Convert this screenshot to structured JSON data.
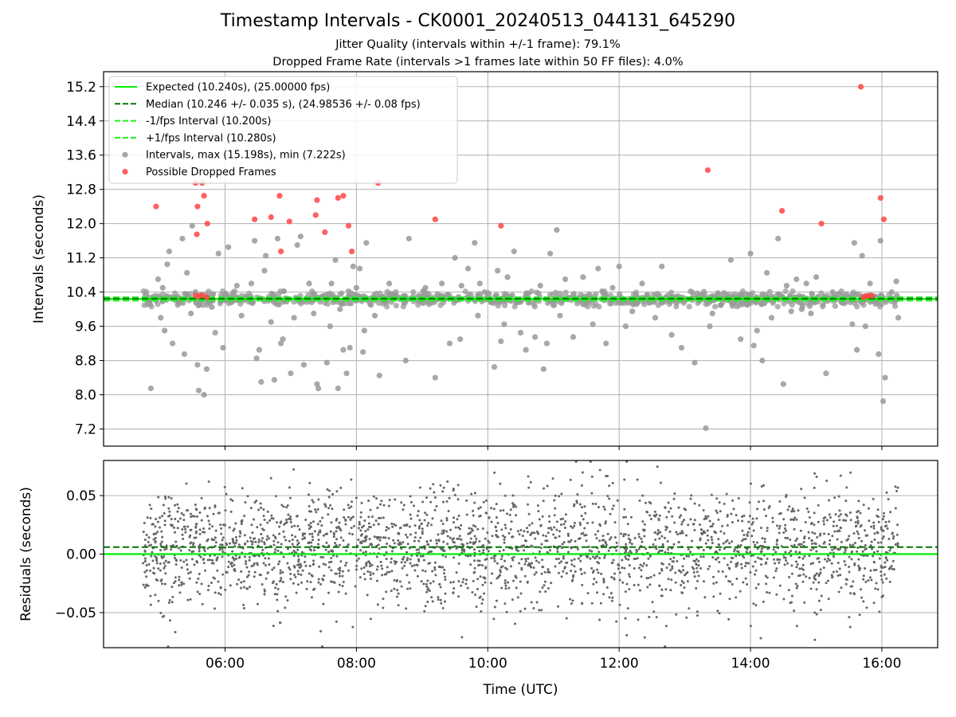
{
  "title": "Timestamp Intervals - CK0001_20240513_044131_645290",
  "subtitle_1": "Jitter Quality (intervals within +/-1 frame): 79.1%",
  "subtitle_2": "Dropped Frame Rate (intervals >1 frames late within 50 FF files): 4.0%",
  "colors": {
    "expected": "#00ee00",
    "median": "#007700",
    "fps_interval": "#22ee22",
    "intervals": "#999999",
    "dropped": "#ff4444",
    "residuals": "#666666",
    "grid": "#b0b0b0"
  },
  "chart_data": [
    {
      "type": "scatter",
      "panel": "top",
      "ylabel": "Intervals (seconds)",
      "xlabel": "",
      "x_unit": "hours UTC",
      "xlim": [
        4.15,
        16.85
      ],
      "ylim": [
        6.8,
        15.55
      ],
      "x_ticks": [
        "06:00",
        "08:00",
        "10:00",
        "12:00",
        "14:00",
        "16:00"
      ],
      "x_tick_values": [
        6,
        8,
        10,
        12,
        14,
        16
      ],
      "y_ticks": [
        "7.2",
        "8.0",
        "8.8",
        "9.6",
        "10.4",
        "11.2",
        "12.0",
        "12.8",
        "13.6",
        "14.4",
        "15.2"
      ],
      "y_tick_values": [
        7.2,
        8.0,
        8.8,
        9.6,
        10.4,
        11.2,
        12.0,
        12.8,
        13.6,
        14.4,
        15.2
      ],
      "grid": true,
      "legend_position": "top-left",
      "legend": [
        {
          "label": "Expected (10.240s), (25.00000 fps)",
          "style": "solid",
          "color_key": "expected"
        },
        {
          "label": "Median (10.246 +/- 0.035 s), (24.98536 +/- 0.08 fps)",
          "style": "dashed",
          "color_key": "median"
        },
        {
          "label": "-1/fps Interval (10.200s)",
          "style": "dashed",
          "color_key": "fps_interval"
        },
        {
          "label": "+1/fps Interval (10.280s)",
          "style": "dashed",
          "color_key": "fps_interval"
        },
        {
          "label": "Intervals, max (15.198s), min (7.222s)",
          "style": "marker",
          "color_key": "intervals"
        },
        {
          "label": "Possible Dropped Frames",
          "style": "marker",
          "color_key": "dropped"
        }
      ],
      "reference_lines": {
        "expected": 10.24,
        "median": 10.246,
        "minus_1fps": 10.2,
        "plus_1fps": 10.28
      },
      "interval_band": {
        "x_range": [
          4.75,
          16.25
        ],
        "center": 10.24,
        "spread": 0.08
      },
      "interval_outliers": [
        [
          4.87,
          8.15
        ],
        [
          4.98,
          10.7
        ],
        [
          5.02,
          9.8
        ],
        [
          5.05,
          10.5
        ],
        [
          5.08,
          9.5
        ],
        [
          5.12,
          11.05
        ],
        [
          5.15,
          11.35
        ],
        [
          5.2,
          9.2
        ],
        [
          5.28,
          10.1
        ],
        [
          5.35,
          11.65
        ],
        [
          5.38,
          8.95
        ],
        [
          5.42,
          10.85
        ],
        [
          5.48,
          9.9
        ],
        [
          5.5,
          11.95
        ],
        [
          5.55,
          10.4
        ],
        [
          5.58,
          8.7
        ],
        [
          5.6,
          8.1
        ],
        [
          5.68,
          8.0
        ],
        [
          5.72,
          8.6
        ],
        [
          5.8,
          10.05
        ],
        [
          5.85,
          9.45
        ],
        [
          5.9,
          11.3
        ],
        [
          5.97,
          9.1
        ],
        [
          6.05,
          11.45
        ],
        [
          6.18,
          10.55
        ],
        [
          6.25,
          9.85
        ],
        [
          6.4,
          10.6
        ],
        [
          6.45,
          11.6
        ],
        [
          6.48,
          8.85
        ],
        [
          6.52,
          9.05
        ],
        [
          6.55,
          8.3
        ],
        [
          6.6,
          10.9
        ],
        [
          6.62,
          11.25
        ],
        [
          6.7,
          9.7
        ],
        [
          6.75,
          8.35
        ],
        [
          6.8,
          11.65
        ],
        [
          6.85,
          9.2
        ],
        [
          6.88,
          9.3
        ],
        [
          6.9,
          10.2
        ],
        [
          7.0,
          8.5
        ],
        [
          7.05,
          9.8
        ],
        [
          7.1,
          11.5
        ],
        [
          7.15,
          11.7
        ],
        [
          7.2,
          8.7
        ],
        [
          7.28,
          10.6
        ],
        [
          7.35,
          9.9
        ],
        [
          7.4,
          8.25
        ],
        [
          7.42,
          8.15
        ],
        [
          7.48,
          10.3
        ],
        [
          7.55,
          8.75
        ],
        [
          7.6,
          9.6
        ],
        [
          7.62,
          10.6
        ],
        [
          7.68,
          11.15
        ],
        [
          7.72,
          8.15
        ],
        [
          7.75,
          10.0
        ],
        [
          7.8,
          9.05
        ],
        [
          7.85,
          8.5
        ],
        [
          7.88,
          10.3
        ],
        [
          7.9,
          9.1
        ],
        [
          7.95,
          11.0
        ],
        [
          8.0,
          10.5
        ],
        [
          8.05,
          10.95
        ],
        [
          8.1,
          9.0
        ],
        [
          8.12,
          9.5
        ],
        [
          8.15,
          11.55
        ],
        [
          8.22,
          10.1
        ],
        [
          8.28,
          9.85
        ],
        [
          8.35,
          8.45
        ],
        [
          8.5,
          10.6
        ],
        [
          8.62,
          10.3
        ],
        [
          8.75,
          8.8
        ],
        [
          8.8,
          11.65
        ],
        [
          8.95,
          10.2
        ],
        [
          9.05,
          10.5
        ],
        [
          9.2,
          8.4
        ],
        [
          9.3,
          10.6
        ],
        [
          9.42,
          9.2
        ],
        [
          9.5,
          11.2
        ],
        [
          9.58,
          9.3
        ],
        [
          9.6,
          10.55
        ],
        [
          9.7,
          10.95
        ],
        [
          9.8,
          11.55
        ],
        [
          9.85,
          9.85
        ],
        [
          9.88,
          10.6
        ],
        [
          9.95,
          10.4
        ],
        [
          10.1,
          8.65
        ],
        [
          10.15,
          10.9
        ],
        [
          10.2,
          9.25
        ],
        [
          10.25,
          9.65
        ],
        [
          10.3,
          10.75
        ],
        [
          10.4,
          11.35
        ],
        [
          10.5,
          9.45
        ],
        [
          10.58,
          9.05
        ],
        [
          10.62,
          10.15
        ],
        [
          10.72,
          9.35
        ],
        [
          10.8,
          10.55
        ],
        [
          10.85,
          8.6
        ],
        [
          10.9,
          9.2
        ],
        [
          10.95,
          11.3
        ],
        [
          11.05,
          11.85
        ],
        [
          11.1,
          9.85
        ],
        [
          11.18,
          10.7
        ],
        [
          11.3,
          9.35
        ],
        [
          11.45,
          10.75
        ],
        [
          11.6,
          9.65
        ],
        [
          11.68,
          10.95
        ],
        [
          11.8,
          9.2
        ],
        [
          11.9,
          10.5
        ],
        [
          12.0,
          11.0
        ],
        [
          12.1,
          9.6
        ],
        [
          12.2,
          9.95
        ],
        [
          12.35,
          10.6
        ],
        [
          12.42,
          10.3
        ],
        [
          12.55,
          9.8
        ],
        [
          12.65,
          11.0
        ],
        [
          12.8,
          9.4
        ],
        [
          12.95,
          9.1
        ],
        [
          13.15,
          8.75
        ],
        [
          13.28,
          10.3
        ],
        [
          13.32,
          7.22
        ],
        [
          13.38,
          9.6
        ],
        [
          13.42,
          9.9
        ],
        [
          13.55,
          10.1
        ],
        [
          13.7,
          11.15
        ],
        [
          13.85,
          9.3
        ],
        [
          13.95,
          10.1
        ],
        [
          14.0,
          11.3
        ],
        [
          14.05,
          9.15
        ],
        [
          14.1,
          9.5
        ],
        [
          14.18,
          8.8
        ],
        [
          14.25,
          10.85
        ],
        [
          14.32,
          9.8
        ],
        [
          14.42,
          11.65
        ],
        [
          14.5,
          8.25
        ],
        [
          14.55,
          10.55
        ],
        [
          14.62,
          9.95
        ],
        [
          14.7,
          10.7
        ],
        [
          14.78,
          10.0
        ],
        [
          14.85,
          10.6
        ],
        [
          14.92,
          9.9
        ],
        [
          15.0,
          10.75
        ],
        [
          15.15,
          8.5
        ],
        [
          15.25,
          10.4
        ],
        [
          15.4,
          10.15
        ],
        [
          15.55,
          9.65
        ],
        [
          15.58,
          11.55
        ],
        [
          15.62,
          9.05
        ],
        [
          15.7,
          11.25
        ],
        [
          15.75,
          9.6
        ],
        [
          15.82,
          10.6
        ],
        [
          15.95,
          8.95
        ],
        [
          15.98,
          11.6
        ],
        [
          16.02,
          7.85
        ],
        [
          16.05,
          8.4
        ],
        [
          16.15,
          10.4
        ],
        [
          16.25,
          9.8
        ],
        [
          16.22,
          10.65
        ]
      ],
      "dropped_frames": [
        [
          4.95,
          12.4
        ],
        [
          5.55,
          12.95
        ],
        [
          5.65,
          12.95
        ],
        [
          5.58,
          12.4
        ],
        [
          5.68,
          12.65
        ],
        [
          5.73,
          12.0
        ],
        [
          5.57,
          11.75
        ],
        [
          6.45,
          12.1
        ],
        [
          6.7,
          12.15
        ],
        [
          6.83,
          12.65
        ],
        [
          6.85,
          11.35
        ],
        [
          6.98,
          12.05
        ],
        [
          7.38,
          12.2
        ],
        [
          7.4,
          12.55
        ],
        [
          7.52,
          11.8
        ],
        [
          7.72,
          12.6
        ],
        [
          7.8,
          12.65
        ],
        [
          7.88,
          11.95
        ],
        [
          7.93,
          11.35
        ],
        [
          8.33,
          12.95
        ],
        [
          9.2,
          12.1
        ],
        [
          10.2,
          11.95
        ],
        [
          13.35,
          13.25
        ],
        [
          14.48,
          12.3
        ],
        [
          15.08,
          12.0
        ],
        [
          15.68,
          15.198
        ],
        [
          15.98,
          12.6
        ],
        [
          16.03,
          12.1
        ],
        [
          5.6,
          10.3
        ],
        [
          5.65,
          10.33
        ],
        [
          5.72,
          10.28
        ],
        [
          5.55,
          10.32
        ],
        [
          15.75,
          10.3
        ],
        [
          15.8,
          10.32
        ],
        [
          15.72,
          10.28
        ],
        [
          15.85,
          10.31
        ]
      ]
    },
    {
      "type": "scatter",
      "panel": "bottom",
      "ylabel": "Residuals (seconds)",
      "xlabel": "Time (UTC)",
      "xlim": [
        4.15,
        16.85
      ],
      "ylim": [
        -0.08,
        0.08
      ],
      "x_ticks": [
        "06:00",
        "08:00",
        "10:00",
        "12:00",
        "14:00",
        "16:00"
      ],
      "x_tick_values": [
        6,
        8,
        10,
        12,
        14,
        16
      ],
      "y_ticks": [
        "−0.05",
        "0.00",
        "0.05"
      ],
      "y_tick_values": [
        -0.05,
        0.0,
        0.05
      ],
      "grid": true,
      "reference_lines": {
        "expected": 0.0,
        "median": 0.006
      },
      "residual_band": {
        "x_range": [
          4.75,
          16.25
        ],
        "spread": 0.035,
        "count": 2600
      }
    }
  ]
}
